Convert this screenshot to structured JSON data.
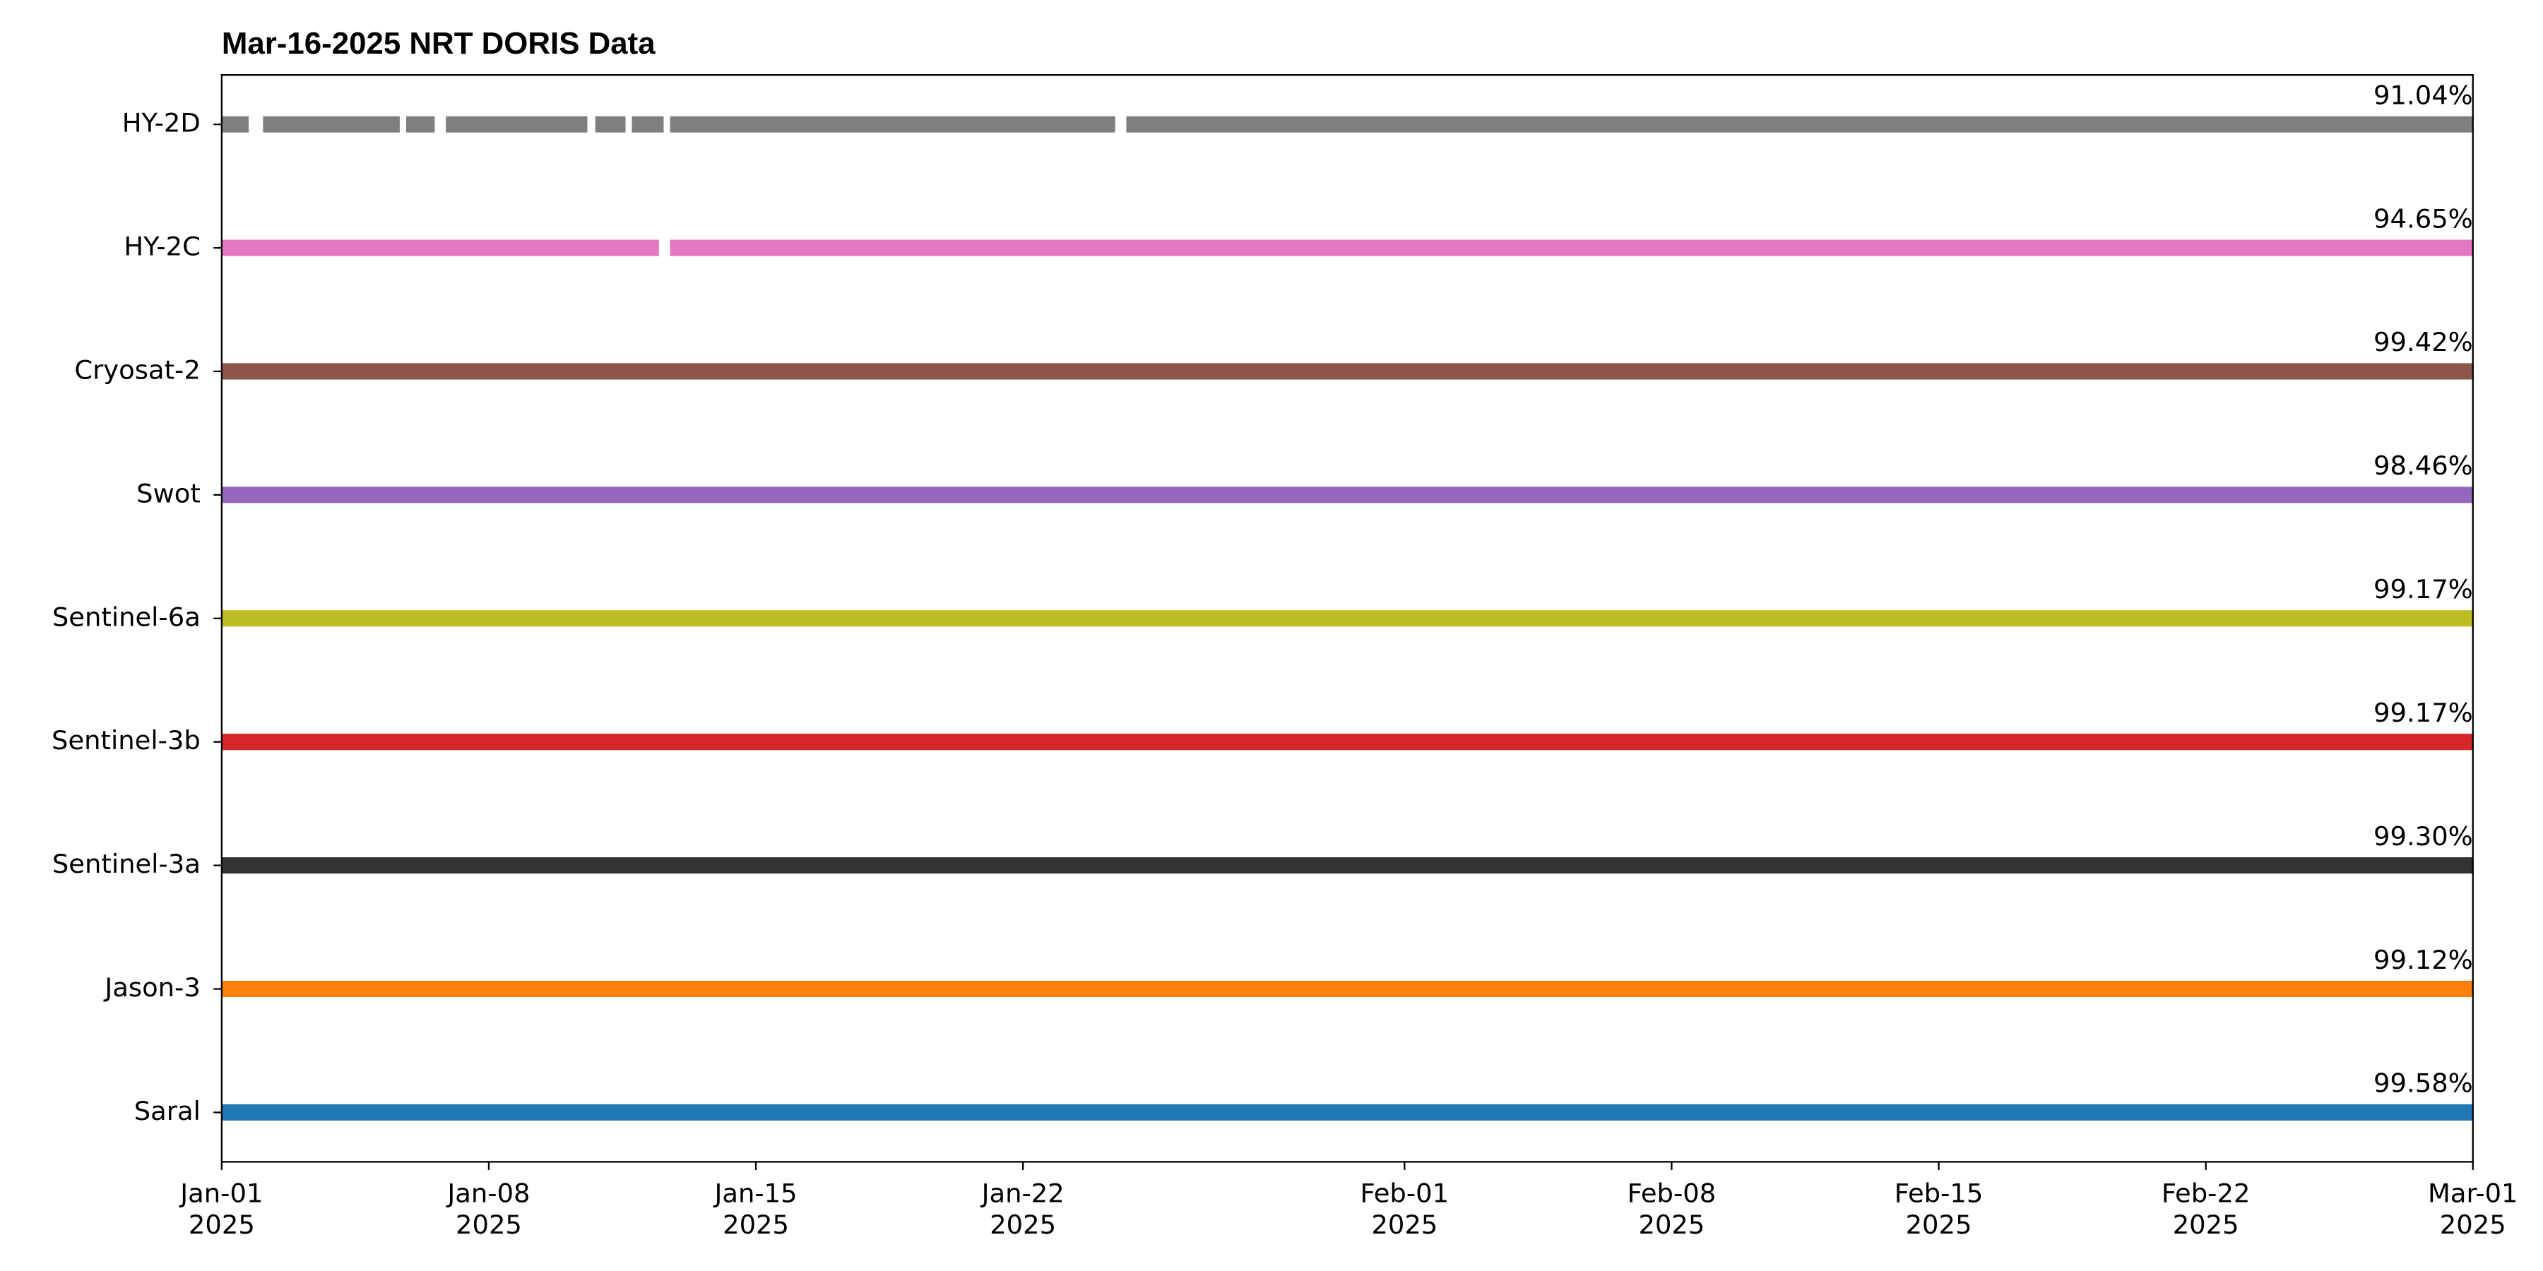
{
  "chart_data": {
    "type": "timeline",
    "title": "Mar-16-2025 NRT DORIS Data",
    "xlim": [
      "2025-01-01T00:00",
      "2025-03-01T00:00"
    ],
    "xticks": [
      {
        "value": "2025-01-01T00:00",
        "label": "Jan-01\n2025"
      },
      {
        "value": "2025-01-08T00:00",
        "label": "Jan-08\n2025"
      },
      {
        "value": "2025-01-15T00:00",
        "label": "Jan-15\n2025"
      },
      {
        "value": "2025-01-22T00:00",
        "label": "Jan-22\n2025"
      },
      {
        "value": "2025-02-01T00:00",
        "label": "Feb-01\n2025"
      },
      {
        "value": "2025-02-08T00:00",
        "label": "Feb-08\n2025"
      },
      {
        "value": "2025-02-15T00:00",
        "label": "Feb-15\n2025"
      },
      {
        "value": "2025-02-22T00:00",
        "label": "Feb-22\n2025"
      },
      {
        "value": "2025-03-01T00:00",
        "label": "Mar-01\n2025"
      }
    ],
    "series": [
      {
        "name": "Saral",
        "color": "#1f77b4",
        "segments": [
          [
            "2025-01-01T00:00",
            "2025-03-01T00:00"
          ]
        ],
        "value": 99.58,
        "value_label": "99.58%"
      },
      {
        "name": "Jason-3",
        "color": "#ff7f0e",
        "segments": [
          [
            "2025-01-01T00:00",
            "2025-03-01T00:00"
          ]
        ],
        "value": 99.12,
        "value_label": "99.12%"
      },
      {
        "name": "Sentinel-3a",
        "color": "#333333",
        "segments": [
          [
            "2025-01-01T00:00",
            "2025-03-01T00:00"
          ]
        ],
        "value": 99.3,
        "value_label": "99.30%"
      },
      {
        "name": "Sentinel-3b",
        "color": "#d62728",
        "segments": [
          [
            "2025-01-01T00:00",
            "2025-03-01T00:00"
          ]
        ],
        "value": 99.17,
        "value_label": "99.17%"
      },
      {
        "name": "Sentinel-6a",
        "color": "#bcbd22",
        "segments": [
          [
            "2025-01-01T00:00",
            "2025-03-01T00:00"
          ]
        ],
        "value": 99.17,
        "value_label": "99.17%"
      },
      {
        "name": "Swot",
        "color": "#9467bd",
        "segments": [
          [
            "2025-01-01T00:00",
            "2025-03-01T00:00"
          ]
        ],
        "value": 98.46,
        "value_label": "98.46%"
      },
      {
        "name": "Cryosat-2",
        "color": "#8c564b",
        "segments": [
          [
            "2025-01-01T00:00",
            "2025-03-01T00:00"
          ]
        ],
        "value": 99.42,
        "value_label": "99.42%"
      },
      {
        "name": "HY-2C",
        "color": "#e377c2",
        "segments": [
          [
            "2025-01-01T00:00",
            "2025-01-12T11:00"
          ],
          [
            "2025-01-12T18:00",
            "2025-03-01T00:00"
          ]
        ],
        "value": 94.65,
        "value_label": "94.65%"
      },
      {
        "name": "HY-2D",
        "color": "#7f7f7f",
        "segments": [
          [
            "2025-01-01T00:00",
            "2025-01-01T17:00"
          ],
          [
            "2025-01-02T02:00",
            "2025-01-05T16:00"
          ],
          [
            "2025-01-05T20:00",
            "2025-01-06T14:00"
          ],
          [
            "2025-01-06T21:00",
            "2025-01-10T14:00"
          ],
          [
            "2025-01-10T19:00",
            "2025-01-11T14:00"
          ],
          [
            "2025-01-11T18:00",
            "2025-01-12T14:00"
          ],
          [
            "2025-01-12T18:00",
            "2025-01-24T10:00"
          ],
          [
            "2025-01-24T17:00",
            "2025-03-01T00:00"
          ]
        ],
        "value": 91.04,
        "value_label": "91.04%"
      }
    ]
  }
}
